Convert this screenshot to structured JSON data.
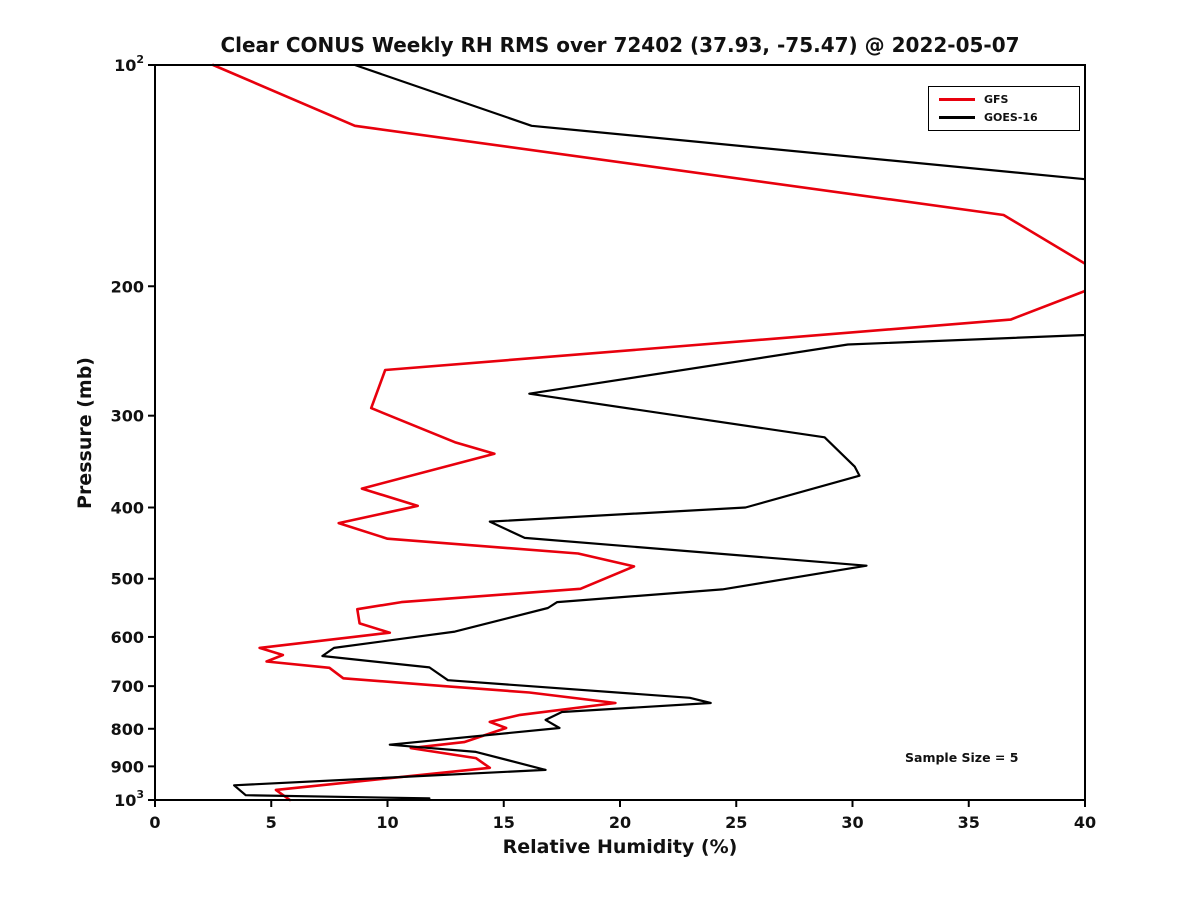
{
  "chart_data": {
    "type": "line",
    "title": "Clear CONUS Weekly RH RMS over 72402 (37.93, -75.47) @ 2022-05-07",
    "xlabel": "Relative Humidity (%)",
    "ylabel": "Pressure (mb)",
    "xlim": [
      0,
      40
    ],
    "x_ticks": [
      0,
      5,
      10,
      15,
      20,
      25,
      30,
      35,
      40
    ],
    "y_scale": "log",
    "y_inverted": true,
    "ylim": [
      100,
      1000
    ],
    "y_ticks": [
      100,
      200,
      300,
      400,
      500,
      600,
      700,
      800,
      900,
      1000
    ],
    "y_tick_labels": [
      "10^2",
      "200",
      "300",
      "400",
      "500",
      "600",
      "700",
      "800",
      "900",
      "10^3"
    ],
    "grid": false,
    "legend_position": "top-right",
    "annotation": "Sample Size = 5",
    "series": [
      {
        "name": "GFS",
        "color": "#e8000d",
        "width": 2.6,
        "points": [
          [
            100,
            2.5
          ],
          [
            121,
            8.6
          ],
          [
            160,
            36.5
          ],
          [
            188,
            40.2
          ],
          [
            203,
            40.0
          ],
          [
            222,
            36.8
          ],
          [
            260,
            9.9
          ],
          [
            293,
            9.3
          ],
          [
            326,
            12.9
          ],
          [
            338,
            14.6
          ],
          [
            377,
            8.9
          ],
          [
            398,
            11.3
          ],
          [
            420,
            7.9
          ],
          [
            441,
            10.0
          ],
          [
            462,
            18.2
          ],
          [
            481,
            20.6
          ],
          [
            516,
            18.3
          ],
          [
            538,
            10.6
          ],
          [
            550,
            8.7
          ],
          [
            575,
            8.8
          ],
          [
            592,
            10.1
          ],
          [
            621,
            4.5
          ],
          [
            635,
            5.5
          ],
          [
            648,
            4.8
          ],
          [
            661,
            7.5
          ],
          [
            683,
            8.1
          ],
          [
            700,
            12.4
          ],
          [
            714,
            16.1
          ],
          [
            738,
            19.8
          ],
          [
            766,
            15.7
          ],
          [
            783,
            14.4
          ],
          [
            798,
            15.1
          ],
          [
            834,
            13.3
          ],
          [
            850,
            11.0
          ],
          [
            877,
            13.8
          ],
          [
            904,
            14.4
          ],
          [
            969,
            5.2
          ],
          [
            1000,
            5.8
          ]
        ]
      },
      {
        "name": "GOES-16",
        "color": "#000000",
        "width": 2.2,
        "points": [
          [
            100,
            8.6
          ],
          [
            121,
            16.2
          ],
          [
            143,
            40.0
          ],
          [
            188,
            44.5
          ],
          [
            233,
            40.0
          ],
          [
            240,
            29.8
          ],
          [
            280,
            16.1
          ],
          [
            321,
            28.8
          ],
          [
            352,
            30.1
          ],
          [
            362,
            30.3
          ],
          [
            400,
            25.4
          ],
          [
            418,
            14.4
          ],
          [
            440,
            15.9
          ],
          [
            480,
            30.6
          ],
          [
            517,
            24.4
          ],
          [
            538,
            17.3
          ],
          [
            548,
            16.9
          ],
          [
            590,
            12.9
          ],
          [
            621,
            7.7
          ],
          [
            637,
            7.2
          ],
          [
            660,
            11.8
          ],
          [
            687,
            12.6
          ],
          [
            726,
            23.0
          ],
          [
            738,
            23.9
          ],
          [
            759,
            17.5
          ],
          [
            778,
            16.8
          ],
          [
            798,
            17.4
          ],
          [
            841,
            10.1
          ],
          [
            860,
            13.8
          ],
          [
            910,
            16.8
          ],
          [
            955,
            3.4
          ],
          [
            985,
            3.9
          ],
          [
            995,
            11.8
          ]
        ]
      }
    ]
  }
}
